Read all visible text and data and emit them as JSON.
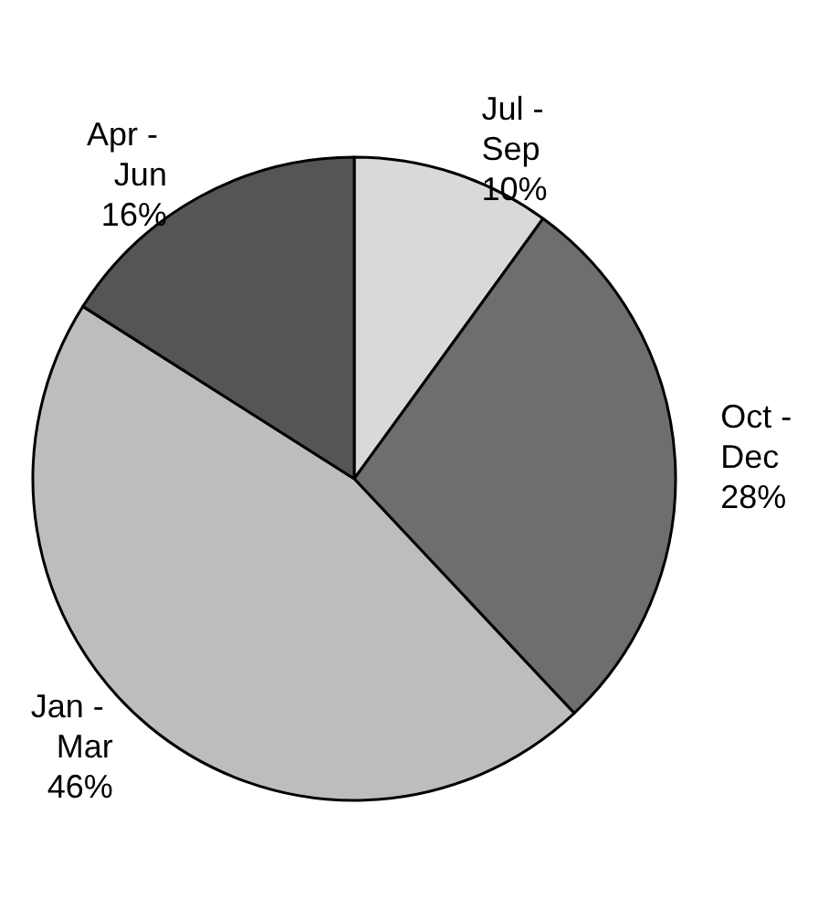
{
  "chart_data": {
    "type": "pie",
    "categories": [
      "Jul - Sep",
      "Oct - Dec",
      "Jan - Mar",
      "Apr - Jun"
    ],
    "values": [
      10,
      28,
      46,
      16
    ],
    "value_labels": [
      "10%",
      "28%",
      "46%",
      "16%"
    ],
    "colors": [
      "#d9d9d9",
      "#6e6e6e",
      "#bdbdbd",
      "#555555"
    ],
    "legend": false
  }
}
